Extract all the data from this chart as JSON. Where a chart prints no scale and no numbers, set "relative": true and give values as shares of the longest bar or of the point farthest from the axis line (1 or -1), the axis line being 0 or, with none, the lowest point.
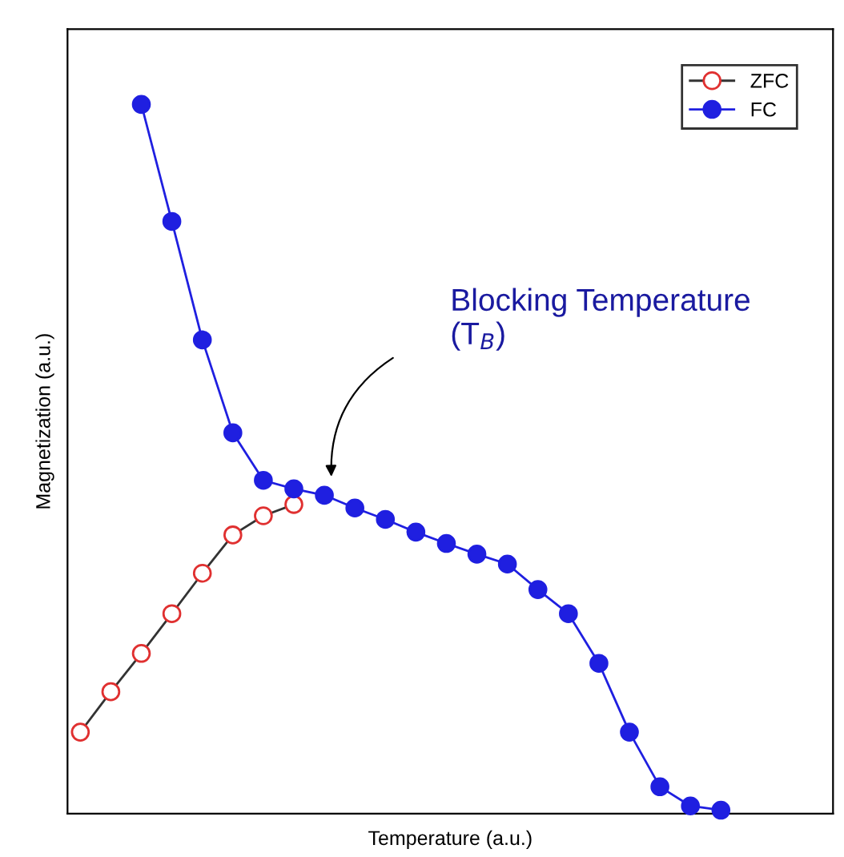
{
  "chart_data": {
    "type": "line",
    "relative": true,
    "xlabel": "Temperature (a.u.)",
    "ylabel": "Magnetization (a.u.)",
    "categories": [
      null,
      null,
      null,
      null,
      null,
      null,
      null,
      null,
      null,
      null,
      null,
      null,
      null,
      null,
      null,
      null,
      null,
      null,
      null,
      null,
      null,
      null
    ],
    "series": [
      {
        "name": "ZFC",
        "color": "#e03030",
        "marker": "circle",
        "values": [
          0.115,
          0.172,
          0.226,
          0.282,
          0.339,
          0.393,
          0.42,
          0.436,
          null,
          null,
          null,
          null,
          null,
          null,
          null,
          null,
          null,
          null,
          null,
          null,
          null,
          null
        ]
      },
      {
        "name": "FC",
        "color": "#1f1fe0",
        "marker": "circle",
        "values": [
          null,
          null,
          1.0,
          0.835,
          0.668,
          0.537,
          0.47,
          0.458,
          0.449,
          0.431,
          0.415,
          0.397,
          0.381,
          0.366,
          0.352,
          0.316,
          0.282,
          0.212,
          0.115,
          0.038,
          0.011,
          0.005
        ]
      }
    ],
    "annotations": [
      "Blocking Temperature (T$_{B}$)"
    ],
    "legend": "top right",
    "grid": false
  }
}
